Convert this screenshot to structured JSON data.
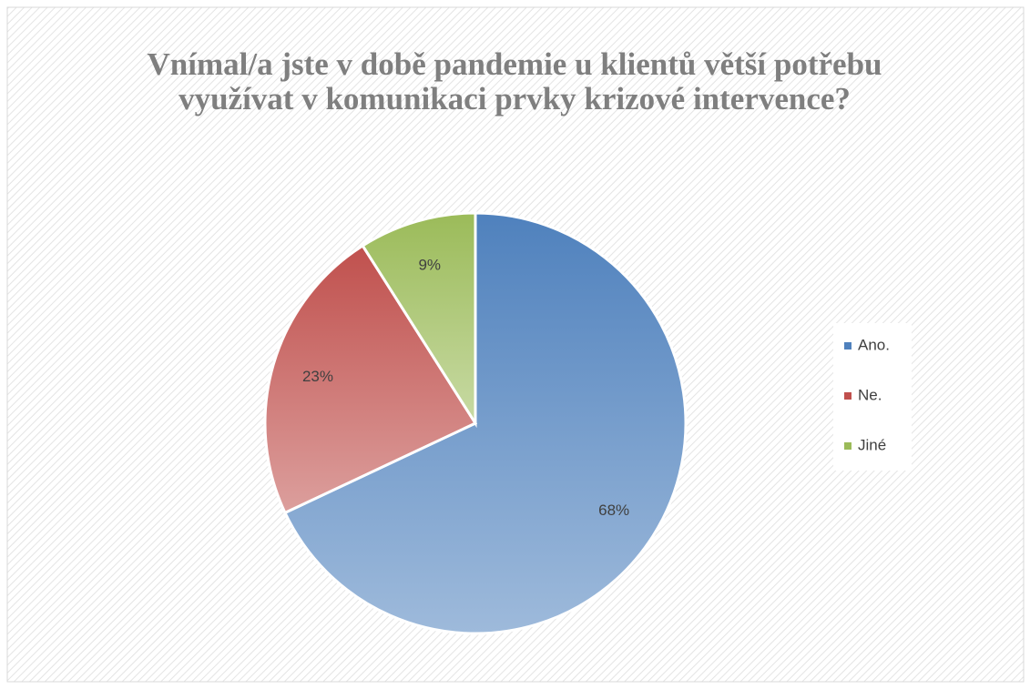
{
  "chart_data": {
    "type": "pie",
    "title": "Vnímal/a jste v době pandemie u klientů větší potřebu využívat v komunikaci prvky krizové intervence?",
    "categories": [
      "Ano.",
      "Ne.",
      "Jiné"
    ],
    "values": [
      68,
      23,
      9
    ],
    "value_labels": [
      "68%",
      "23%",
      "9%"
    ],
    "colors": [
      "#4f81bd",
      "#c0504d",
      "#9bbb59"
    ],
    "legend": "right"
  }
}
